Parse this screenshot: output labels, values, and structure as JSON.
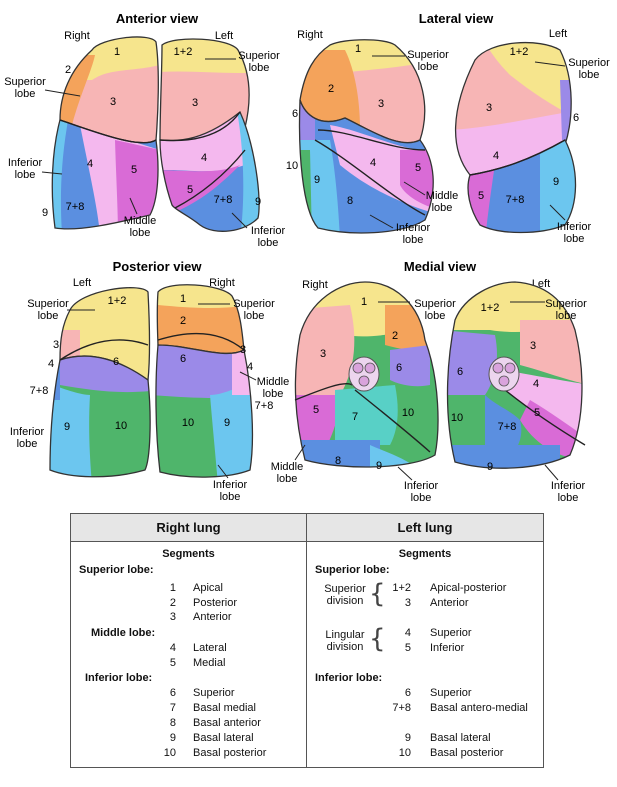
{
  "views": {
    "anterior": {
      "title": "Anterior view",
      "right": "Right",
      "left": "Left"
    },
    "lateral": {
      "title": "Lateral view",
      "right": "Right",
      "left": "Left"
    },
    "posterior": {
      "title": "Posterior view",
      "right": "Right",
      "left": "Left"
    },
    "medial": {
      "title": "Medial view",
      "right": "Right",
      "left": "Left"
    }
  },
  "lobe_labels": {
    "superior": [
      "Superior",
      "lobe"
    ],
    "inferior": [
      "Inferior",
      "lobe"
    ],
    "middle": [
      "Middle",
      "lobe"
    ]
  },
  "segment_numbers": {
    "s1": "1",
    "s2": "2",
    "s3": "3",
    "s4": "4",
    "s5": "5",
    "s6": "6",
    "s7": "7",
    "s8": "8",
    "s9": "9",
    "s10": "10",
    "s12": "1+2",
    "s78": "7+8"
  },
  "colors": {
    "apical": "#f6e58d",
    "posterior": "#f4a35b",
    "anterior": "#f7b5b5",
    "lateral_mid": "#f4b8ee",
    "medial_mid": "#d96bd6",
    "superior_inf": "#9b8ae8",
    "basal_medial": "#58d0c6",
    "basal_anterior": "#5b8fe0",
    "basal_lateral": "#6cc6ef",
    "basal_posterior": "#4fb56b",
    "hilum": "#d9a3dc"
  },
  "legend": {
    "right_header": "Right lung",
    "left_header": "Left lung",
    "segments_label": "Segments",
    "right": {
      "superior_lobe": "Superior lobe:",
      "middle_lobe": "Middle lobe:",
      "inferior_lobe": "Inferior lobe:",
      "rows": [
        {
          "n": "1",
          "name": "Apical"
        },
        {
          "n": "2",
          "name": "Posterior"
        },
        {
          "n": "3",
          "name": "Anterior"
        },
        {
          "n": "4",
          "name": "Lateral"
        },
        {
          "n": "5",
          "name": "Medial"
        },
        {
          "n": "6",
          "name": "Superior"
        },
        {
          "n": "7",
          "name": "Basal medial"
        },
        {
          "n": "8",
          "name": "Basal anterior"
        },
        {
          "n": "9",
          "name": "Basal lateral"
        },
        {
          "n": "10",
          "name": "Basal posterior"
        }
      ]
    },
    "left": {
      "superior_lobe": "Superior lobe:",
      "superior_division": [
        "Superior",
        "division"
      ],
      "lingular_division": [
        "Lingular",
        "division"
      ],
      "inferior_lobe": "Inferior lobe:",
      "rows": [
        {
          "n": "1+2",
          "name": "Apical-posterior"
        },
        {
          "n": "3",
          "name": "Anterior"
        },
        {
          "n": "4",
          "name": "Superior"
        },
        {
          "n": "5",
          "name": "Inferior"
        },
        {
          "n": "6",
          "name": "Superior"
        },
        {
          "n": "7+8",
          "name": "Basal antero-medial"
        },
        {
          "n": "9",
          "name": "Basal lateral"
        },
        {
          "n": "10",
          "name": "Basal posterior"
        }
      ]
    }
  }
}
